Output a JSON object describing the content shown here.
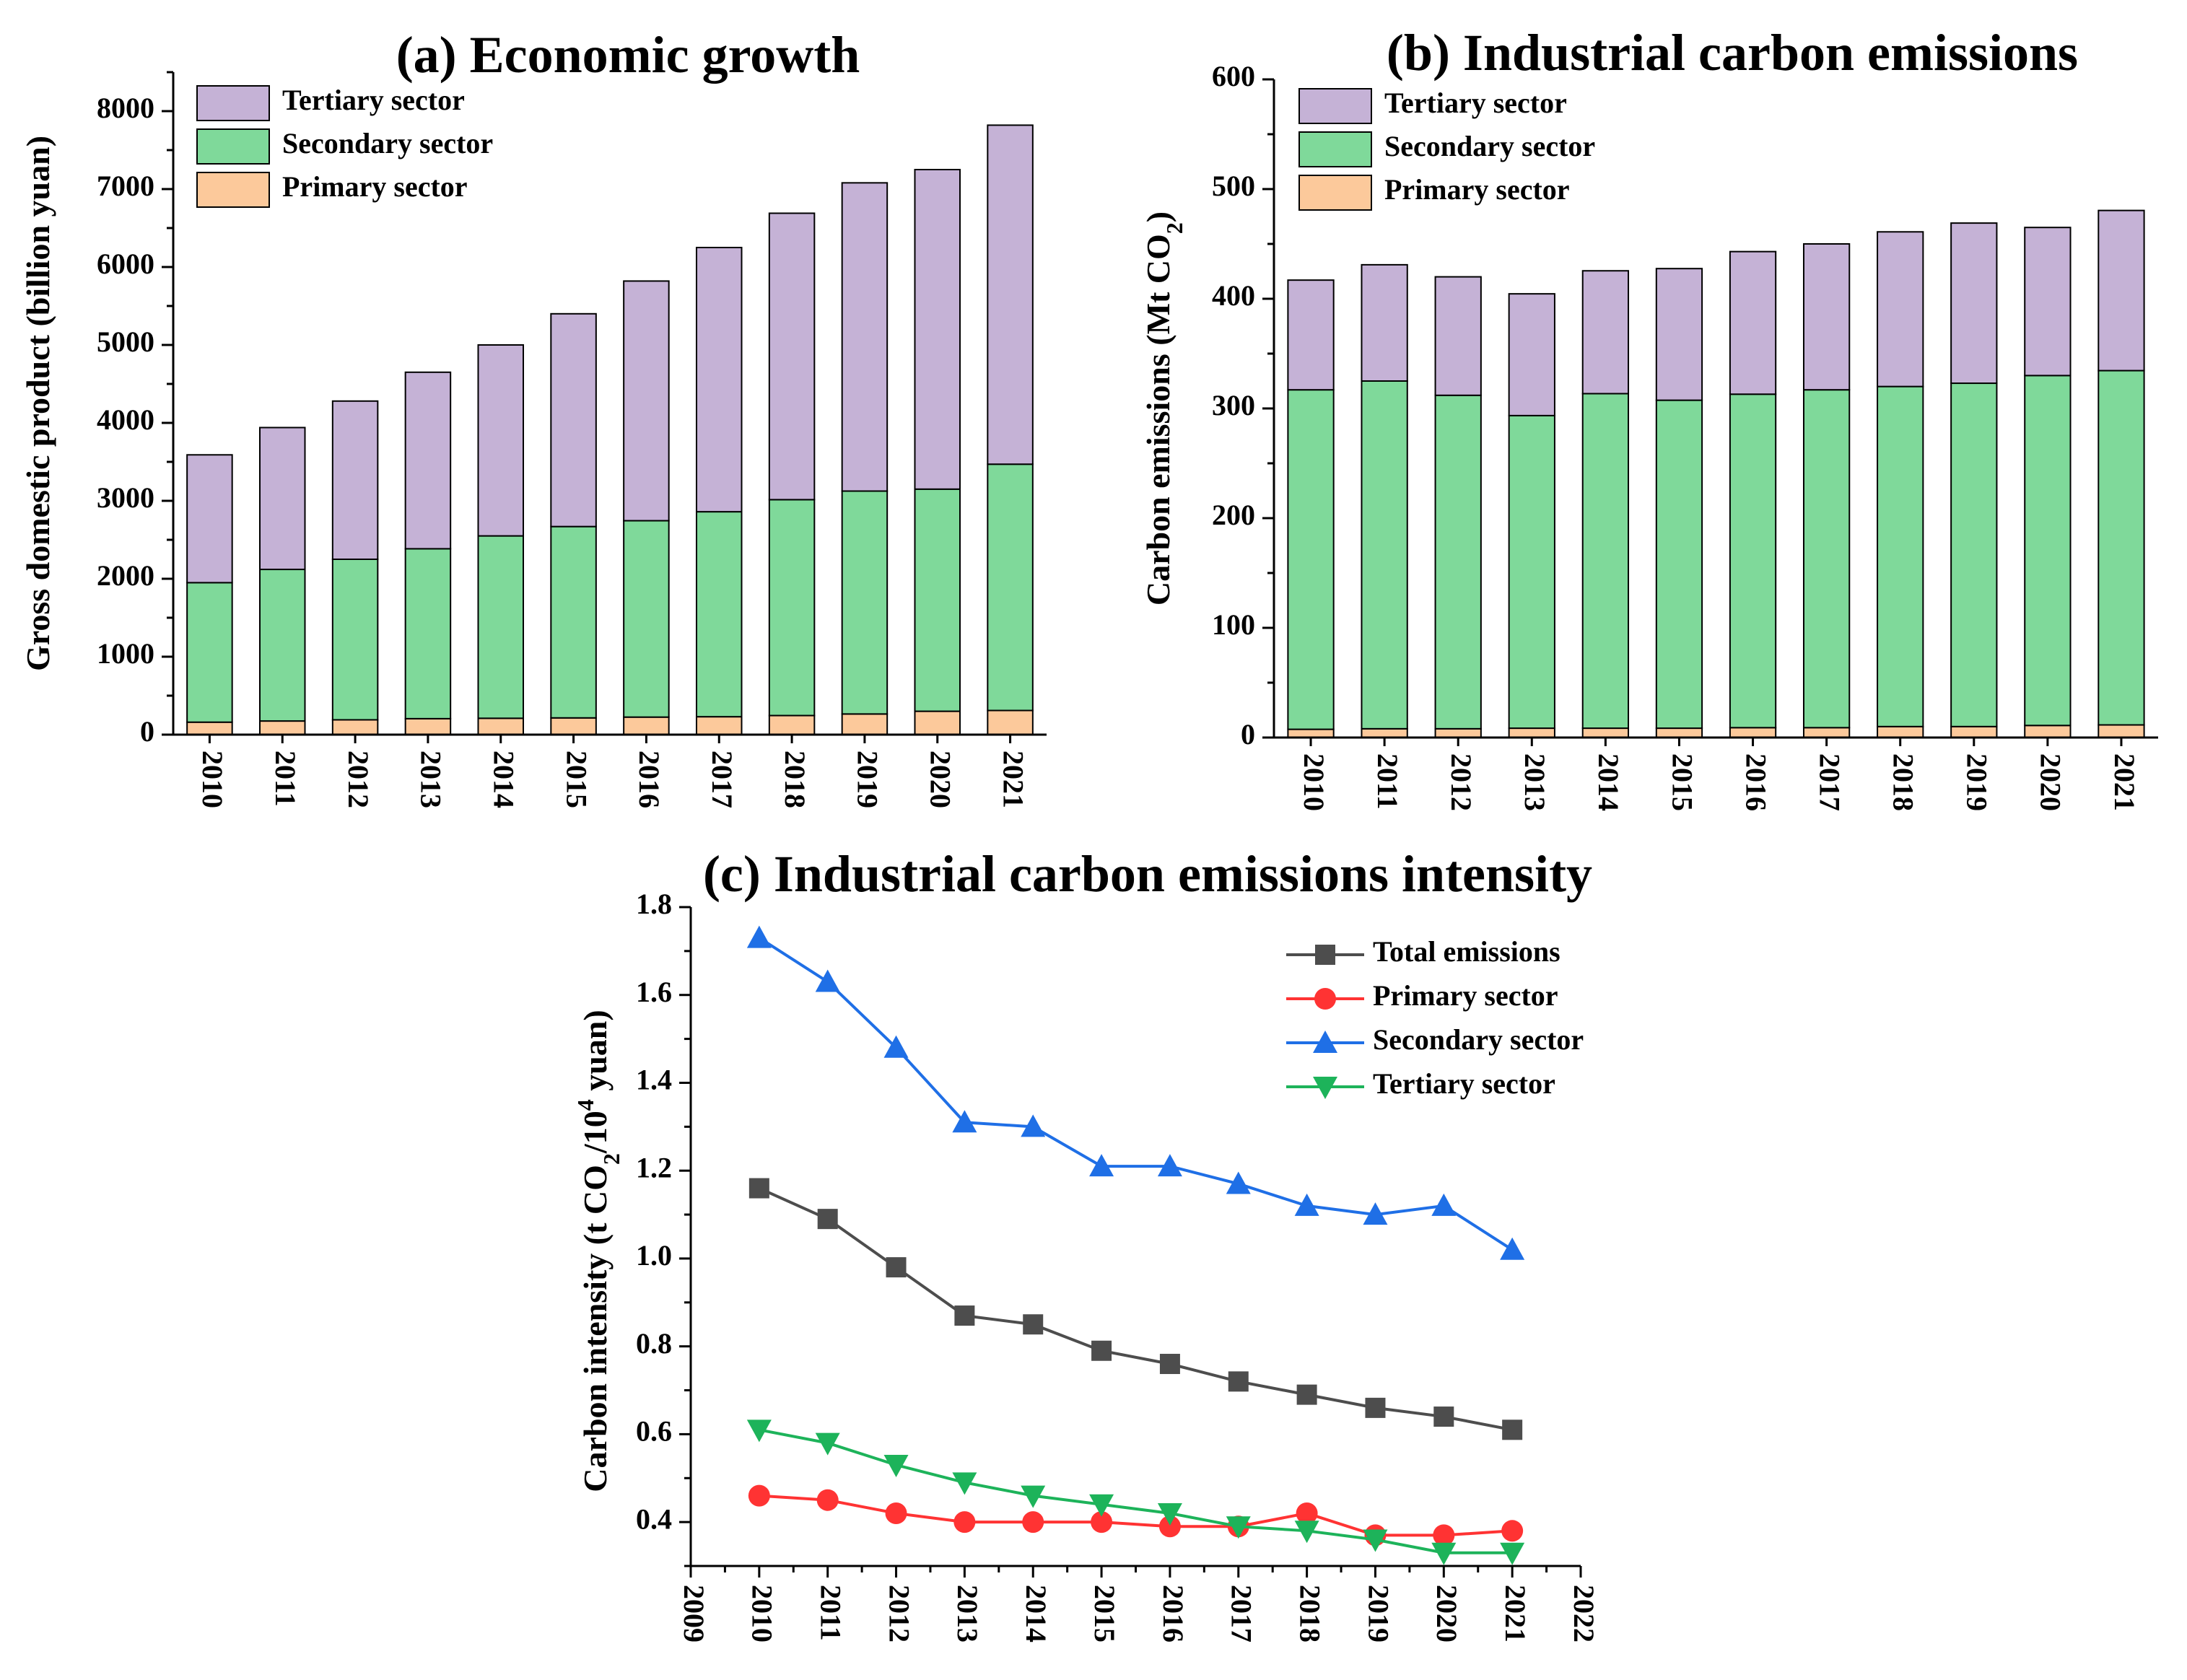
{
  "chart_data": [
    {
      "id": "a",
      "type": "bar",
      "stacked": true,
      "title": "(a) Economic growth",
      "xlabel": "",
      "ylabel": "Gross domestic product (billion yuan)",
      "ylim": [
        0,
        8500
      ],
      "yticks": [
        0,
        1000,
        2000,
        3000,
        4000,
        5000,
        6000,
        7000,
        8000
      ],
      "categories": [
        "2010",
        "2011",
        "2012",
        "2013",
        "2014",
        "2015",
        "2016",
        "2017",
        "2018",
        "2019",
        "2020",
        "2021"
      ],
      "series": [
        {
          "name": "Primary sector",
          "color": "#FCC99B",
          "values": [
            160,
            175,
            190,
            205,
            210,
            215,
            225,
            230,
            245,
            265,
            300,
            310
          ]
        },
        {
          "name": "Secondary sector",
          "color": "#7FD99A",
          "values": [
            1790,
            1945,
            2060,
            2180,
            2340,
            2455,
            2520,
            2630,
            2770,
            2860,
            2850,
            3160
          ]
        },
        {
          "name": "Tertiary sector",
          "color": "#C5B2D6",
          "values": [
            1640,
            1820,
            2030,
            2265,
            2450,
            2730,
            3075,
            3390,
            3675,
            3955,
            4100,
            4350
          ]
        }
      ],
      "legend_order": [
        "Tertiary sector",
        "Secondary sector",
        "Primary sector"
      ],
      "legend_position": "top-left"
    },
    {
      "id": "b",
      "type": "bar",
      "stacked": true,
      "title": "(b) Industrial carbon emissions",
      "xlabel": "",
      "ylabel": "Carbon emissions (Mt CO2)",
      "ylabel_parts": {
        "main": "Carbon emissions (Mt CO",
        "sub": "2",
        "end": ")"
      },
      "ylim": [
        0,
        600
      ],
      "yticks": [
        0,
        100,
        200,
        300,
        400,
        500,
        600
      ],
      "categories": [
        "2010",
        "2011",
        "2012",
        "2013",
        "2014",
        "2015",
        "2016",
        "2017",
        "2018",
        "2019",
        "2020",
        "2021"
      ],
      "series": [
        {
          "name": "Primary sector",
          "color": "#FCC99B",
          "values": [
            7.5,
            8,
            8,
            8.5,
            8.5,
            8.5,
            9,
            9,
            10,
            10,
            11,
            11.5
          ]
        },
        {
          "name": "Secondary sector",
          "color": "#7FD99A",
          "values": [
            309.5,
            317,
            304,
            285,
            305,
            299,
            304,
            308,
            310,
            313,
            319,
            323
          ]
        },
        {
          "name": "Tertiary sector",
          "color": "#C5B2D6",
          "values": [
            100,
            106,
            108,
            111,
            112,
            120,
            130,
            133,
            141,
            146,
            135,
            146
          ]
        }
      ],
      "legend_order": [
        "Tertiary sector",
        "Secondary sector",
        "Primary sector"
      ],
      "legend_position": "top-left"
    },
    {
      "id": "c",
      "type": "line",
      "title": "(c) Industrial carbon emissions intensity",
      "xlabel": "",
      "ylabel": "Carbon intensity (t CO2/10^4 yuan)",
      "ylabel_parts": {
        "a": "Carbon intensity (t CO",
        "sub": "2",
        "b": "/10",
        "sup": "4",
        "c": " yuan)"
      },
      "xlim": [
        2009,
        2022
      ],
      "xticks": [
        2009,
        2010,
        2011,
        2012,
        2013,
        2014,
        2015,
        2016,
        2017,
        2018,
        2019,
        2020,
        2021,
        2022
      ],
      "ylim": [
        0.3,
        1.8
      ],
      "yticks": [
        0.4,
        0.6,
        0.8,
        1.0,
        1.2,
        1.4,
        1.6,
        1.8
      ],
      "x": [
        2010,
        2011,
        2012,
        2013,
        2014,
        2015,
        2016,
        2017,
        2018,
        2019,
        2020,
        2021
      ],
      "series": [
        {
          "name": "Total emissions",
          "color": "#4D4D4D",
          "marker": "square",
          "values": [
            1.16,
            1.09,
            0.98,
            0.87,
            0.85,
            0.79,
            0.76,
            0.72,
            0.69,
            0.66,
            0.64,
            0.61
          ]
        },
        {
          "name": "Primary sector",
          "color": "#FF3333",
          "marker": "circle",
          "values": [
            0.46,
            0.45,
            0.42,
            0.4,
            0.4,
            0.4,
            0.39,
            0.39,
            0.42,
            0.37,
            0.37,
            0.38
          ]
        },
        {
          "name": "Secondary sector",
          "color": "#1F6FE6",
          "marker": "triangle-up",
          "values": [
            1.73,
            1.63,
            1.48,
            1.31,
            1.3,
            1.21,
            1.21,
            1.17,
            1.12,
            1.1,
            1.12,
            1.02
          ]
        },
        {
          "name": "Tertiary sector",
          "color": "#1DB35A",
          "marker": "triangle-down",
          "values": [
            0.61,
            0.58,
            0.53,
            0.49,
            0.46,
            0.44,
            0.42,
            0.39,
            0.38,
            0.36,
            0.33,
            0.33
          ]
        }
      ],
      "legend_position": "top-right"
    }
  ]
}
